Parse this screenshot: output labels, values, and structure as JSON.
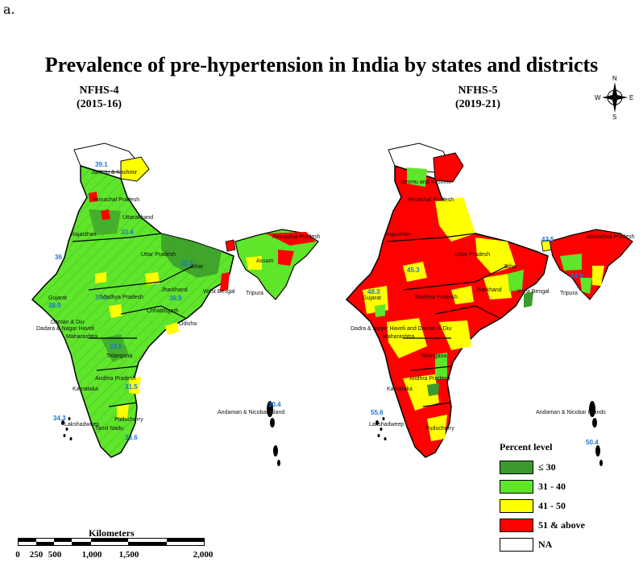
{
  "corner_label": "a.",
  "title": "Prevalence of pre-hypertension in India by states and districts",
  "panels": [
    {
      "survey": "NFHS-4",
      "period": "(2015-16)"
    },
    {
      "survey": "NFHS-5",
      "period": "(2019-21)"
    }
  ],
  "legend": {
    "title": "Percent level",
    "items": [
      {
        "label": "≤ 30",
        "color": "#3a9a2c"
      },
      {
        "label": "31 - 40",
        "color": "#5fe52a"
      },
      {
        "label": "41 - 50",
        "color": "#ffff00"
      },
      {
        "label": "51 & above",
        "color": "#ff0000"
      },
      {
        "label": "NA",
        "color": "#ffffff"
      }
    ]
  },
  "scale": {
    "title": "Kilometers",
    "ticks": [
      "0",
      "250",
      "500",
      "1,000",
      "1,500",
      "2,000"
    ]
  },
  "compass": {
    "n": "N",
    "s": "S",
    "e": "E",
    "w": "W"
  },
  "left_map": {
    "places": [
      "Jammu & Kashmir",
      "Himachal Pradesh",
      "Uttarakhand",
      "Rajasthan",
      "Uttar Pradesh",
      "Bihar",
      "West Bengal",
      "Gujarat",
      "Madhya Pradesh",
      "Jharkhand",
      "Chhattisgarh",
      "Odisha",
      "Daman & Diu",
      "Dadara & Nagar Haveli",
      "Maharashtra",
      "Telangana",
      "Andhra Pradesh",
      "Karnataka",
      "Puducherry",
      "Lakshadweep",
      "Tamil Nadu",
      "Andaman & Nicobar Island",
      "Tripura",
      "Assam",
      "Arunachal Pradesh"
    ],
    "values": [
      "39.1",
      "36",
      "33.4",
      "39.1",
      "38.9",
      "36.9",
      "33.6",
      "31.5",
      "34.3",
      "35.7",
      "33.6",
      "30.4"
    ]
  },
  "right_map": {
    "places": [
      "Jammu and Kashmir",
      "Himachal Pradesh",
      "Rajasthan",
      "Uttar Pradesh",
      "Bihar",
      "West Bengal",
      "Gujarat",
      "Madhya Pradesh",
      "Jharkhand",
      "Dadra & Nagar Haveli and Daman & Diu",
      "Maharashtra",
      "Telangana",
      "Andhra Pradesh",
      "Karnataka",
      "Lakshadweep",
      "Puducherry",
      "Andaman & Nicobar Islands",
      "Tripura",
      "Arunachal Pradesh"
    ],
    "values": [
      "48.3",
      "45.3",
      "44.9",
      "55.6",
      "50.4",
      "42.5"
    ]
  }
}
